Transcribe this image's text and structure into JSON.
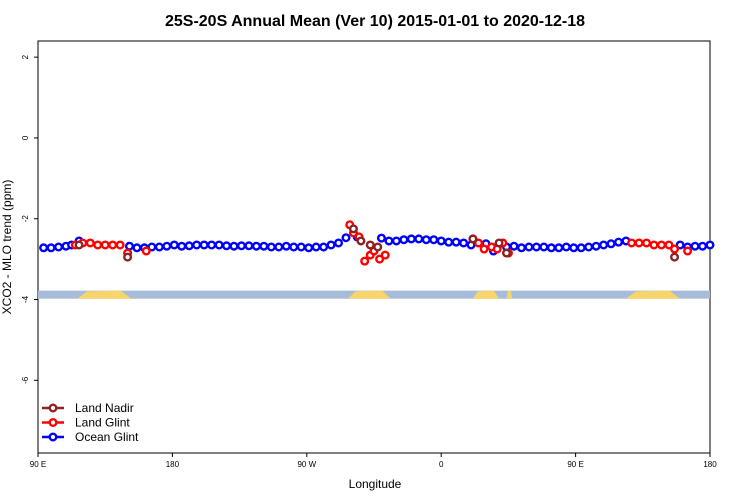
{
  "chart_data": {
    "type": "scatter",
    "title": "25S-20S Annual Mean (Ver 10)   2015-01-01 to 2020-12-18",
    "xlabel": "Longitude",
    "ylabel": "XCO2 - MLO trend (ppm)",
    "xlim": [
      90,
      450
    ],
    "ylim": [
      -7.8,
      2.4
    ],
    "x_ticks": [
      {
        "value": 90,
        "label": "90 E"
      },
      {
        "value": 162,
        "label": "180"
      },
      {
        "value": 234,
        "label": "90 W"
      },
      {
        "value": 306,
        "label": "0"
      },
      {
        "value": 378,
        "label": "90 E"
      },
      {
        "value": 450,
        "label": "180"
      }
    ],
    "y_ticks": [
      {
        "value": 2,
        "label": "2"
      },
      {
        "value": 0,
        "label": "0"
      },
      {
        "value": -2,
        "label": "-2"
      },
      {
        "value": -4,
        "label": "-4"
      },
      {
        "value": -6,
        "label": "-6"
      }
    ],
    "grid": false,
    "legend_position": "bottom-left",
    "land_ocean_strip": {
      "y_top": -3.78,
      "y_bottom": -3.98,
      "ocean_color": "#a7bcd9",
      "land_color": "#f8d56a",
      "land_segments": [
        [
          111,
          140
        ],
        [
          256,
          279
        ],
        [
          323,
          337
        ],
        [
          341,
          344
        ],
        [
          405,
          434
        ]
      ]
    },
    "series": [
      {
        "name": "Land Nadir",
        "color": "#8b2323",
        "x": [
          112,
          138,
          259,
          263,
          268,
          272,
          323,
          337,
          341,
          431
        ],
        "y": [
          -2.65,
          -2.95,
          -2.25,
          -2.55,
          -2.65,
          -2.7,
          -2.5,
          -2.6,
          -2.85,
          -2.95
        ]
      },
      {
        "name": "Land Glint",
        "color": "#ff0000",
        "x": [
          110,
          114,
          118,
          122,
          126,
          130,
          134,
          138,
          148,
          257,
          259,
          262,
          265,
          268,
          270,
          273,
          276,
          323,
          326,
          329,
          333,
          336,
          339,
          342,
          408,
          412,
          416,
          420,
          424,
          428,
          431,
          438
        ],
        "y": [
          -2.65,
          -2.6,
          -2.6,
          -2.65,
          -2.65,
          -2.65,
          -2.65,
          -2.85,
          -2.8,
          -2.15,
          -2.35,
          -2.45,
          -3.05,
          -2.9,
          -2.8,
          -3.0,
          -2.9,
          -2.5,
          -2.6,
          -2.75,
          -2.7,
          -2.75,
          -2.6,
          -2.85,
          -2.6,
          -2.6,
          -2.6,
          -2.65,
          -2.65,
          -2.65,
          -2.75,
          -2.8
        ]
      },
      {
        "name": "Ocean Glint",
        "color": "#0000ff",
        "x": [
          93,
          97,
          101,
          105,
          108,
          112,
          139,
          143,
          147,
          151,
          155,
          159,
          163,
          167,
          171,
          175,
          179,
          183,
          187,
          191,
          195,
          199,
          203,
          207,
          211,
          215,
          219,
          223,
          227,
          231,
          235,
          239,
          243,
          247,
          251,
          255,
          261,
          274,
          278,
          282,
          286,
          290,
          294,
          298,
          302,
          306,
          310,
          314,
          318,
          322,
          330,
          334,
          337,
          341,
          345,
          349,
          353,
          357,
          361,
          365,
          369,
          373,
          377,
          381,
          385,
          389,
          393,
          397,
          401,
          405,
          434,
          438,
          442,
          446,
          450
        ],
        "y": [
          -2.72,
          -2.72,
          -2.7,
          -2.68,
          -2.65,
          -2.55,
          -2.68,
          -2.72,
          -2.72,
          -2.7,
          -2.7,
          -2.68,
          -2.65,
          -2.68,
          -2.67,
          -2.65,
          -2.65,
          -2.65,
          -2.65,
          -2.67,
          -2.68,
          -2.67,
          -2.67,
          -2.68,
          -2.68,
          -2.7,
          -2.7,
          -2.68,
          -2.7,
          -2.7,
          -2.72,
          -2.7,
          -2.7,
          -2.65,
          -2.6,
          -2.47,
          -2.45,
          -2.48,
          -2.55,
          -2.55,
          -2.52,
          -2.5,
          -2.5,
          -2.52,
          -2.52,
          -2.55,
          -2.58,
          -2.58,
          -2.6,
          -2.65,
          -2.62,
          -2.8,
          -2.62,
          -2.7,
          -2.68,
          -2.72,
          -2.7,
          -2.7,
          -2.7,
          -2.72,
          -2.72,
          -2.7,
          -2.72,
          -2.72,
          -2.7,
          -2.68,
          -2.65,
          -2.62,
          -2.58,
          -2.55,
          -2.65,
          -2.7,
          -2.68,
          -2.68,
          -2.65
        ]
      }
    ]
  }
}
